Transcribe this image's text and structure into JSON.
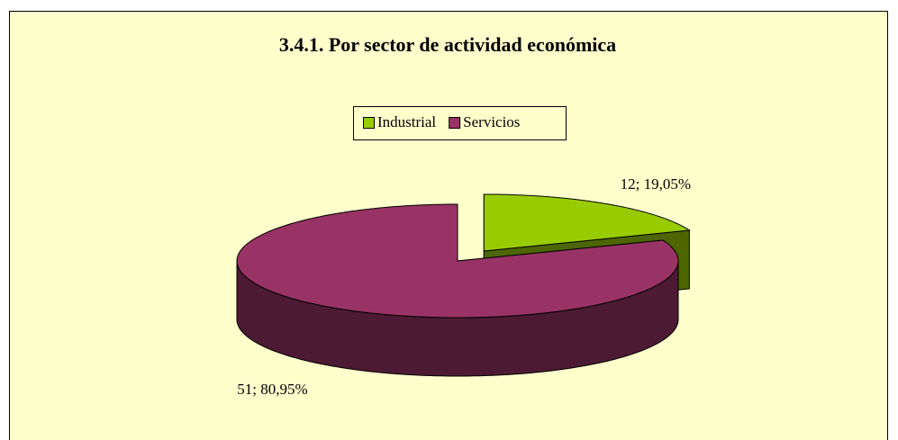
{
  "chart_data": {
    "type": "pie3d",
    "title": "3.4.1. Por sector de actividad económica",
    "categories": [
      "Industrial",
      "Servicios"
    ],
    "values": [
      12,
      51
    ],
    "value_labels": [
      "12; 19,05%",
      "51; 80,95%"
    ],
    "colors": [
      "#99cc00",
      "#993366"
    ],
    "side_colors": [
      "#4d6600",
      "#4d1a33"
    ],
    "legend": "top"
  }
}
